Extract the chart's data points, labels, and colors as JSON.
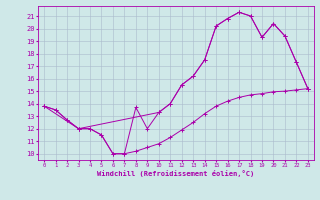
{
  "title": "",
  "xlabel": "Windchill (Refroidissement éolien,°C)",
  "bg_color": "#cfe8e8",
  "grid_color": "#aabbcc",
  "line_color": "#aa00aa",
  "xlim": [
    -0.5,
    23.5
  ],
  "ylim": [
    9.5,
    21.8
  ],
  "xticks": [
    0,
    1,
    2,
    3,
    4,
    5,
    6,
    7,
    8,
    9,
    10,
    11,
    12,
    13,
    14,
    15,
    16,
    17,
    18,
    19,
    20,
    21,
    22,
    23
  ],
  "yticks": [
    10,
    11,
    12,
    13,
    14,
    15,
    16,
    17,
    18,
    19,
    20,
    21
  ],
  "line1_x": [
    0,
    1,
    2,
    3,
    4,
    5,
    6,
    7,
    8,
    9,
    10,
    11,
    12,
    13,
    14,
    15,
    16,
    17,
    18,
    19,
    20,
    21,
    22,
    23
  ],
  "line1_y": [
    13.8,
    13.5,
    12.7,
    12.0,
    12.0,
    11.5,
    10.0,
    10.0,
    13.7,
    12.0,
    13.3,
    14.0,
    15.5,
    16.2,
    17.5,
    20.2,
    20.8,
    21.3,
    21.0,
    19.3,
    20.4,
    19.4,
    17.3,
    15.2
  ],
  "line2_x": [
    0,
    3,
    10,
    11,
    12,
    13,
    14,
    15,
    16,
    17,
    18,
    19,
    20,
    21,
    22,
    23
  ],
  "line2_y": [
    13.8,
    12.0,
    13.3,
    14.0,
    15.5,
    16.2,
    17.5,
    20.2,
    20.8,
    21.3,
    21.0,
    19.3,
    20.4,
    19.4,
    17.3,
    15.2
  ],
  "line3_x": [
    0,
    1,
    2,
    3,
    4,
    5,
    6,
    7,
    8,
    9,
    10,
    11,
    12,
    13,
    14,
    15,
    16,
    17,
    18,
    19,
    20,
    21,
    22,
    23
  ],
  "line3_y": [
    13.8,
    13.5,
    12.7,
    12.0,
    12.0,
    11.5,
    10.0,
    10.0,
    10.2,
    10.5,
    10.8,
    11.3,
    11.9,
    12.5,
    13.2,
    13.8,
    14.2,
    14.5,
    14.7,
    14.8,
    14.95,
    15.0,
    15.1,
    15.2
  ]
}
